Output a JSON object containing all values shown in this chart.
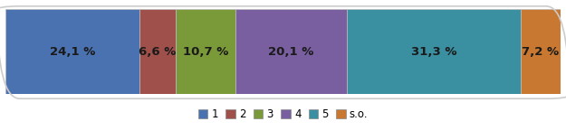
{
  "values": [
    24.1,
    6.6,
    10.7,
    20.1,
    31.3,
    7.2
  ],
  "labels": [
    "24,1 %",
    "6,6 %",
    "10,7 %",
    "20,1 %",
    "31,3 %",
    "7,2 %"
  ],
  "colors": [
    "#4a72b0",
    "#a0504a",
    "#7a9a3a",
    "#7a5fa0",
    "#3a8fa0",
    "#c87830"
  ],
  "legend_labels": [
    "1",
    "2",
    "3",
    "4",
    "5",
    "s.o."
  ],
  "background_color": "#ffffff",
  "bar_edge_color": "#bbbbbb",
  "text_color": "#1a1a1a",
  "font_size": 9.5,
  "legend_font_size": 8.5,
  "outer_box_color": "#cccccc"
}
